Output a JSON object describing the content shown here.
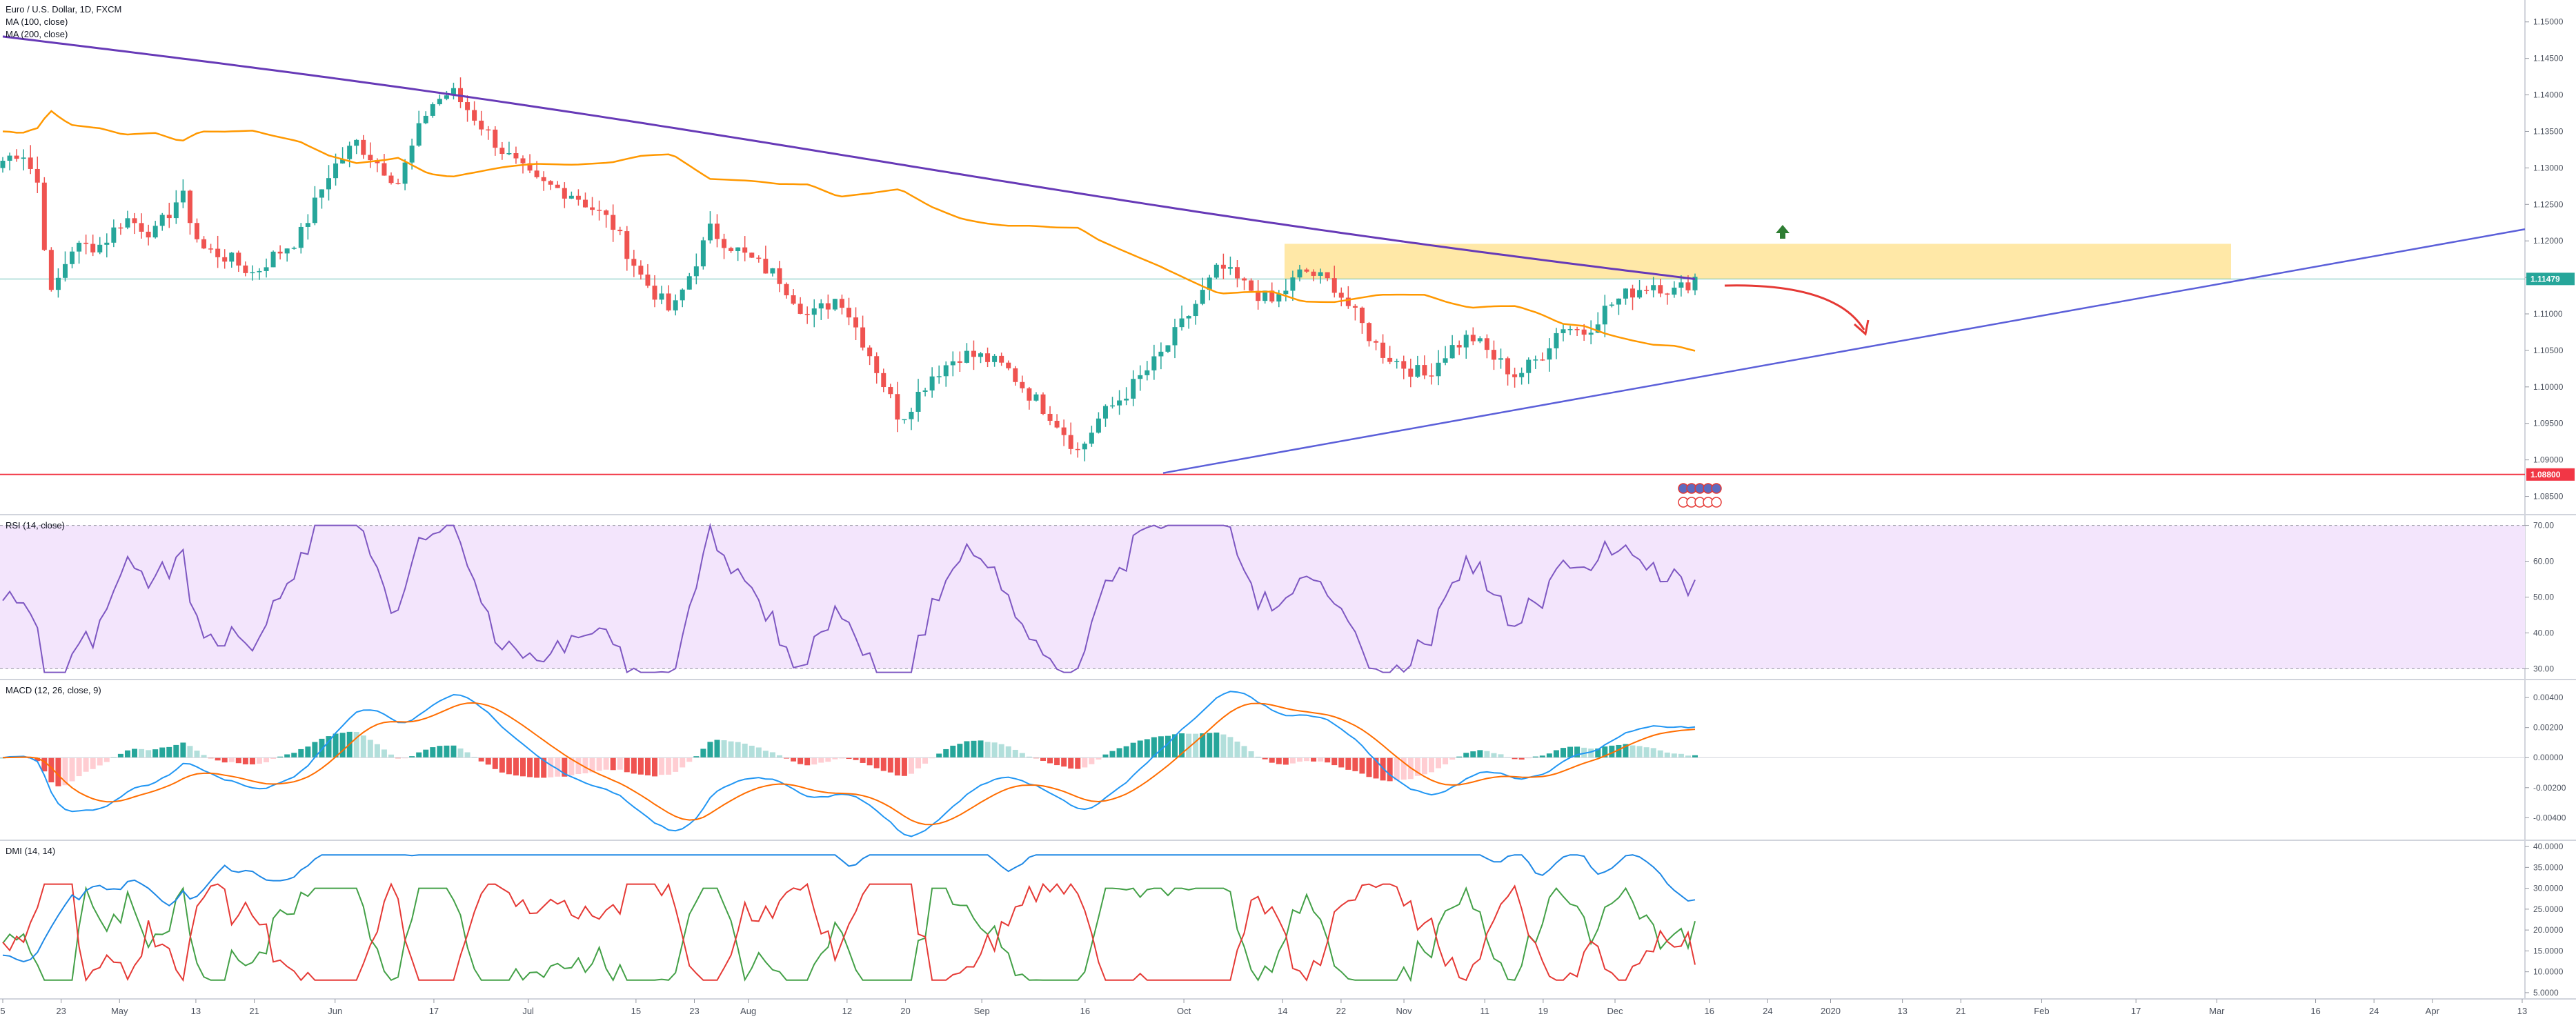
{
  "colors": {
    "up": "#26a69a",
    "down": "#ef5350",
    "ma100": "#ff9800",
    "ma200": "#673ab7",
    "trendline": "#5b5fd9",
    "support": "#f23645",
    "resistance_zone": "#ffe08a",
    "rsi": "#7e57c2",
    "rsi_band": "#f3e5fc",
    "macd": "#2196f3",
    "signal": "#ff6d00",
    "hist_up_strong": "#26a69a",
    "hist_up_weak": "#b2dfdb",
    "hist_down_strong": "#ef5350",
    "hist_down_weak": "#ffcdd2",
    "plus_di": "#43a047",
    "minus_di": "#e53935",
    "adx": "#1e88e5",
    "current_price_line": "#26a69a"
  },
  "chart_data": [
    {
      "type": "candlestick",
      "title": "Euro / U.S. Dollar, 1D, FXCM",
      "legend": [
        "MA (100, close)",
        "MA (200, close)"
      ],
      "ylim": [
        1.0825,
        1.153
      ],
      "y_ticks": [
        "1.15000",
        "1.14500",
        "1.14000",
        "1.13500",
        "1.13000",
        "1.12500",
        "1.12000",
        "1.11500",
        "1.11000",
        "1.10500",
        "1.10000",
        "1.09500",
        "1.09000",
        "1.08500"
      ],
      "y_tick_values": [
        1.15,
        1.145,
        1.14,
        1.135,
        1.13,
        1.125,
        1.12,
        1.115,
        1.11,
        1.105,
        1.1,
        1.095,
        1.09,
        1.085
      ],
      "current_price_label": "1.11479",
      "current_price": 1.11479,
      "support_label": "1.08800",
      "support_level": 1.088,
      "resistance_zone": {
        "from": 1.1148,
        "to": 1.1178
      },
      "annotations": [
        "red curved arrow pointing down-right",
        "green up arrow"
      ],
      "event_icons": [
        "€",
        "€",
        "€",
        "$",
        "$",
        "€",
        "€"
      ]
    },
    {
      "type": "line",
      "title": "RSI (14, close)",
      "ylim": [
        27,
        73
      ],
      "y_ticks": [
        "70.00",
        "60.00",
        "50.00",
        "40.00",
        "30.00"
      ],
      "y_tick_values": [
        70,
        60,
        50,
        40,
        30
      ],
      "band": [
        30,
        70
      ]
    },
    {
      "type": "line+bar",
      "title": "MACD (12, 26, close, 9)",
      "ylim": [
        -0.0055,
        0.0052
      ],
      "y_ticks": [
        "0.00400",
        "0.00200",
        "0.00000",
        "-0.00200",
        "-0.00400"
      ],
      "y_tick_values": [
        0.004,
        0.002,
        0,
        -0.002,
        -0.004
      ]
    },
    {
      "type": "line",
      "title": "DMI (14, 14)",
      "ylim": [
        3.5,
        41.5
      ],
      "y_ticks": [
        "40.0000",
        "35.0000",
        "30.0000",
        "25.0000",
        "20.0000",
        "15.0000",
        "10.0000",
        "5.0000"
      ],
      "y_tick_values": [
        40,
        35,
        30,
        25,
        20,
        15,
        10,
        5
      ]
    }
  ],
  "time_axis": {
    "labels": [
      "5",
      "23",
      "May",
      "13",
      "21",
      "Jun",
      "17",
      "Jul",
      "15",
      "23",
      "Aug",
      "12",
      "20",
      "Sep",
      "16",
      "Oct",
      "14",
      "22",
      "Nov",
      "11",
      "19",
      "Dec",
      "16",
      "24",
      "2020",
      "13",
      "21",
      "Feb",
      "17",
      "Mar",
      "16",
      "24",
      "Apr",
      "13"
    ],
    "bar_index": [
      0,
      13,
      26,
      43,
      56,
      74,
      96,
      117,
      141,
      154,
      166,
      188,
      201,
      218,
      241,
      263,
      285,
      298,
      312,
      330,
      343,
      359,
      380,
      393,
      407,
      423,
      436,
      454,
      475,
      493,
      515,
      528,
      541,
      561
    ]
  }
}
